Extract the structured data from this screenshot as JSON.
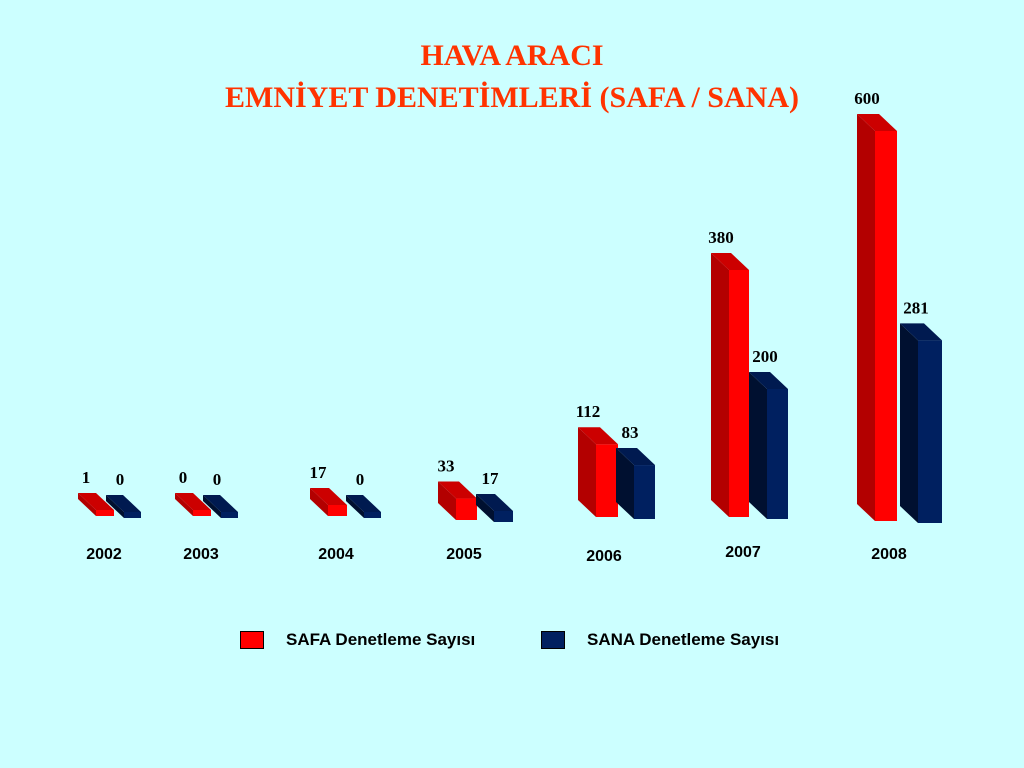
{
  "title_line1": "HAVA ARACI",
  "title_line2": "EMNİYET DENETİMLERİ (SAFA / SANA)",
  "chart_data": {
    "type": "bar",
    "categories": [
      "2002",
      "2003",
      "2004",
      "2005",
      "2006",
      "2007",
      "2008"
    ],
    "series": [
      {
        "name": "SAFA Denetleme Sayısı",
        "values": [
          1,
          0,
          17,
          33,
          112,
          380,
          600
        ],
        "color": "#ff0000"
      },
      {
        "name": "SANA Denetleme Sayısı",
        "values": [
          0,
          0,
          0,
          17,
          83,
          200,
          281
        ],
        "color": "#002060"
      }
    ],
    "data_labels": [
      [
        "1",
        "0",
        "17",
        "33",
        "112",
        "380",
        "600"
      ],
      [
        "0",
        "0",
        "0",
        "17",
        "83",
        "200",
        "281"
      ]
    ],
    "legend_position": "bottom",
    "grid": false
  }
}
